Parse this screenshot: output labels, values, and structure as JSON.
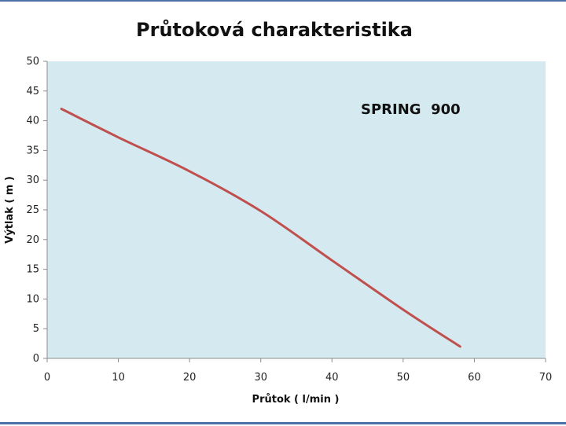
{
  "chart_data": {
    "type": "line",
    "title": "Průtoková charakteristika",
    "xlabel": "Průtok ( l/min )",
    "ylabel": "Výtlak ( m )",
    "xlim": [
      0,
      70
    ],
    "ylim": [
      0,
      50
    ],
    "x_ticks": [
      0,
      10,
      20,
      30,
      40,
      50,
      60,
      70
    ],
    "y_ticks": [
      0,
      5,
      10,
      15,
      20,
      25,
      30,
      35,
      40,
      45,
      50
    ],
    "grid": false,
    "plot_background": "#d4eaf0",
    "annotation": "SPRING  900",
    "series": [
      {
        "color": "#c0504d",
        "x": [
          2,
          10,
          20,
          30,
          40,
          50,
          58
        ],
        "y": [
          42,
          37.2,
          31.5,
          24.8,
          16.5,
          8.2,
          2
        ]
      }
    ]
  }
}
